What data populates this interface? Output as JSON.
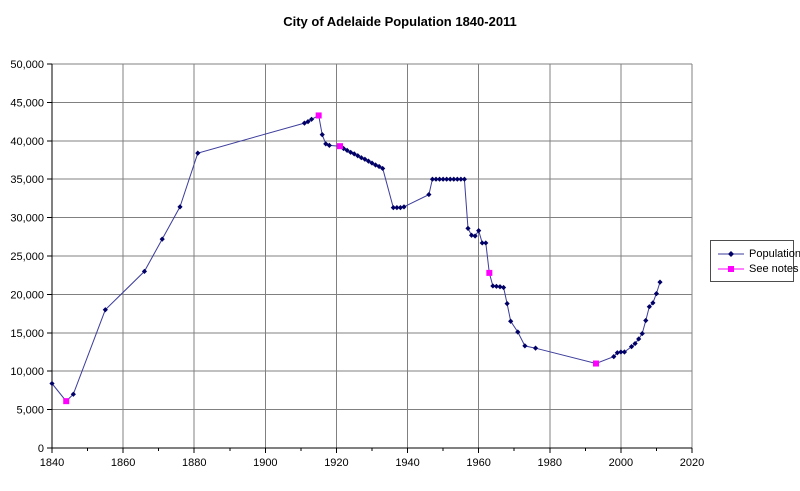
{
  "page": {
    "background": "#ffffff"
  },
  "chart_data": {
    "type": "line",
    "title": "City of Adelaide Population 1840-2011",
    "xlabel": "",
    "ylabel": "",
    "xlim": [
      1840,
      2020
    ],
    "ylim": [
      0,
      50000
    ],
    "x_major_ticks": [
      1840,
      1860,
      1880,
      1900,
      1920,
      1940,
      1960,
      1980,
      2000,
      2020
    ],
    "x_minor_tick_step": 10,
    "y_ticks": [
      0,
      5000,
      10000,
      15000,
      20000,
      25000,
      30000,
      35000,
      40000,
      45000,
      50000
    ],
    "grid": {
      "vertical_gridlines": "every 20 years",
      "horizontal_gridlines": "every 5000"
    },
    "grid_color": "#808080",
    "axis_color": "#000000",
    "tick_label_color": "#000000",
    "legend": {
      "position": "right",
      "entries": [
        {
          "label": "Population",
          "marker": "diamond",
          "line_color": "#3c3c9c",
          "marker_color": "#000066"
        },
        {
          "label": "See notes",
          "marker": "square",
          "line_color": "#ff00ff",
          "marker_color": "#ff00ff"
        }
      ]
    },
    "series": [
      {
        "name": "Population",
        "marker": "diamond",
        "line_color": "#3c3c9c",
        "marker_color": "#000066",
        "points": [
          [
            1840,
            8400
          ],
          [
            1846,
            7000
          ],
          [
            1855,
            18000
          ],
          [
            1866,
            23000
          ],
          [
            1871,
            27200
          ],
          [
            1876,
            31400
          ],
          [
            1881,
            38400
          ],
          [
            1911,
            42300
          ],
          [
            1912,
            42500
          ],
          [
            1913,
            42800
          ],
          [
            1916,
            40800
          ],
          [
            1917,
            39600
          ],
          [
            1918,
            39400
          ],
          [
            1922,
            39000
          ],
          [
            1923,
            38750
          ],
          [
            1924,
            38500
          ],
          [
            1925,
            38300
          ],
          [
            1926,
            38050
          ],
          [
            1927,
            37800
          ],
          [
            1928,
            37600
          ],
          [
            1929,
            37350
          ],
          [
            1930,
            37100
          ],
          [
            1931,
            36850
          ],
          [
            1932,
            36650
          ],
          [
            1933,
            36400
          ],
          [
            1936,
            31300
          ],
          [
            1937,
            31300
          ],
          [
            1938,
            31300
          ],
          [
            1939,
            31400
          ],
          [
            1946,
            33000
          ],
          [
            1947,
            35000
          ],
          [
            1948,
            35000
          ],
          [
            1949,
            35000
          ],
          [
            1950,
            35000
          ],
          [
            1951,
            35000
          ],
          [
            1952,
            35000
          ],
          [
            1953,
            35000
          ],
          [
            1954,
            35000
          ],
          [
            1955,
            35000
          ],
          [
            1956,
            35000
          ],
          [
            1957,
            28600
          ],
          [
            1958,
            27700
          ],
          [
            1959,
            27600
          ],
          [
            1960,
            28300
          ],
          [
            1961,
            26700
          ],
          [
            1962,
            26700
          ],
          [
            1964,
            21100
          ],
          [
            1965,
            21050
          ],
          [
            1966,
            21000
          ],
          [
            1967,
            20900
          ],
          [
            1968,
            18800
          ],
          [
            1969,
            16500
          ],
          [
            1971,
            15100
          ],
          [
            1973,
            13300
          ],
          [
            1976,
            13000
          ],
          [
            1998,
            11900
          ],
          [
            1999,
            12400
          ],
          [
            2000,
            12500
          ],
          [
            2001,
            12500
          ],
          [
            2003,
            13200
          ],
          [
            2004,
            13600
          ],
          [
            2005,
            14200
          ],
          [
            2006,
            14900
          ],
          [
            2007,
            16600
          ],
          [
            2008,
            18400
          ],
          [
            2009,
            18900
          ],
          [
            2010,
            20100
          ],
          [
            2011,
            21600
          ]
        ]
      },
      {
        "name": "See notes",
        "marker": "square",
        "line_color": "#ff00ff",
        "marker_color": "#ff00ff",
        "overlaid_on_population_line": true,
        "points": [
          [
            1844,
            6100
          ],
          [
            1915,
            43300
          ],
          [
            1921,
            39300
          ],
          [
            1963,
            22800
          ],
          [
            1993,
            11000
          ]
        ]
      }
    ]
  }
}
